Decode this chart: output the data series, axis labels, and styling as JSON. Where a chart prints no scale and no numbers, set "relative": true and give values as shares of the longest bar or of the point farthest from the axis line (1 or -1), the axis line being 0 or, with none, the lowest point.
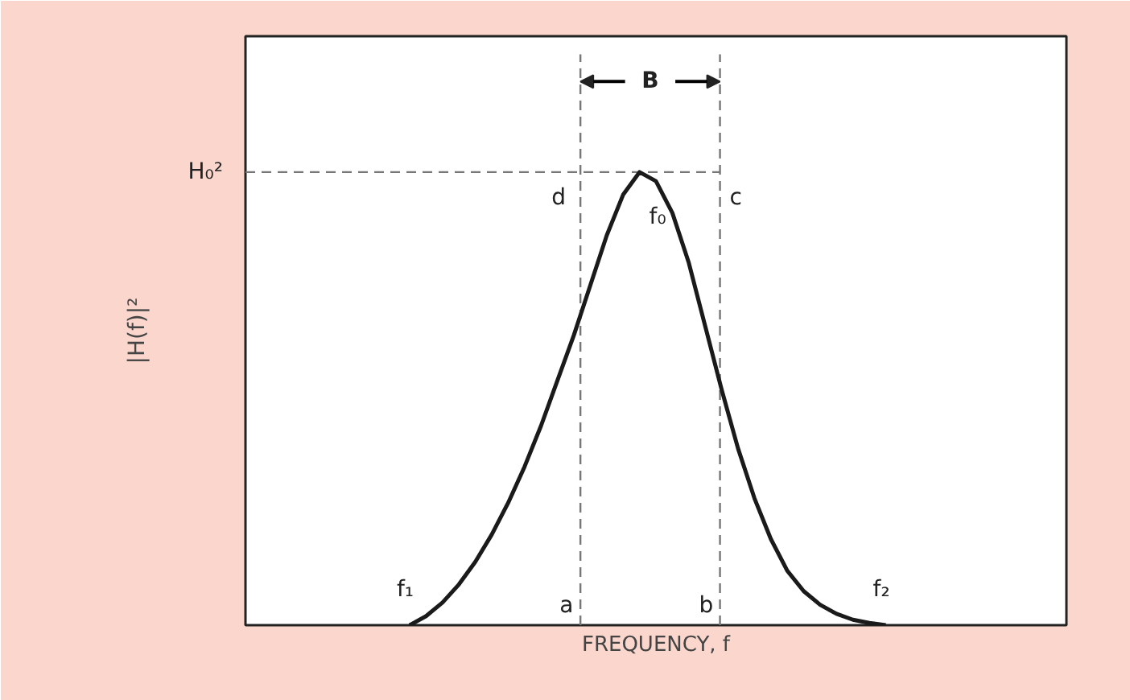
{
  "chart_data": {
    "type": "line",
    "relative": true,
    "xlabel": "FREQUENCY, f",
    "ylabel": "|H(f)|²",
    "marker": "none",
    "line_style": "solid",
    "categories": [
      null,
      null,
      null,
      null,
      null,
      null,
      null,
      null,
      null,
      null,
      null,
      null,
      null,
      null,
      null,
      null,
      null,
      null,
      null,
      null,
      null,
      null,
      null,
      null,
      null,
      null,
      null,
      null,
      null,
      null,
      null,
      null,
      null,
      null,
      null,
      null,
      null,
      null,
      null,
      null,
      null,
      null,
      null,
      null,
      null,
      null,
      null,
      null,
      null,
      null,
      null
    ],
    "series": [
      {
        "color": "#1a1a1a",
        "values": [
          null,
          null,
          null,
          null,
          null,
          null,
          null,
          null,
          null,
          null,
          0,
          0.02,
          0.05,
          0.09,
          0.14,
          0.2,
          0.27,
          0.35,
          0.44,
          0.54,
          0.64,
          0.75,
          0.86,
          0.95,
          1.0,
          0.98,
          0.91,
          0.8,
          0.66,
          0.52,
          0.39,
          0.28,
          0.19,
          0.12,
          0.075,
          0.045,
          0.025,
          0.012,
          0.005,
          0,
          null,
          null,
          null,
          null,
          null,
          null,
          null,
          null,
          null,
          null,
          null
        ]
      }
    ],
    "ref_lines": [
      {
        "axis": "y",
        "value": 1,
        "label": "H₀²",
        "color": "#777777",
        "line_style": "dashed"
      }
    ],
    "annotations": [
      "f₁",
      "f₂",
      "f₀",
      "d",
      "c",
      "a",
      "b",
      "B"
    ]
  }
}
